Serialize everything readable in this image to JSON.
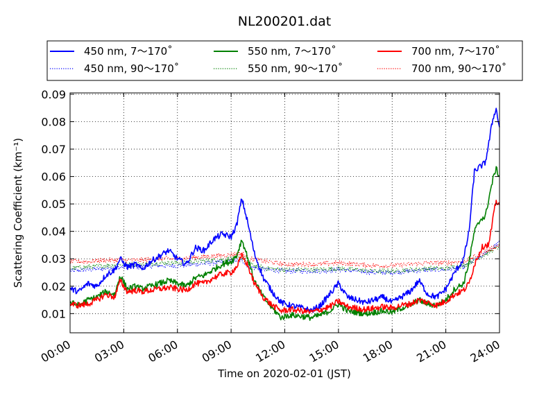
{
  "chart_data": {
    "type": "line",
    "title": "NL200201.dat",
    "xlabel": "Time on 2020-02-01 (JST)",
    "ylabel": "Scattering Coefficient (km⁻¹)",
    "xlim": [
      0,
      24
    ],
    "ylim": [
      0.003,
      0.0905
    ],
    "grid": true,
    "legend_position": "top",
    "x_ticks": [
      {
        "value": 0,
        "label": "00:00"
      },
      {
        "value": 3,
        "label": "03:00"
      },
      {
        "value": 6,
        "label": "06:00"
      },
      {
        "value": 9,
        "label": "09:00"
      },
      {
        "value": 12,
        "label": "12:00"
      },
      {
        "value": 15,
        "label": "15:00"
      },
      {
        "value": 18,
        "label": "18:00"
      },
      {
        "value": 21,
        "label": "21:00"
      },
      {
        "value": 24,
        "label": "24:00"
      }
    ],
    "y_ticks": [
      {
        "value": 0.01,
        "label": "0.01"
      },
      {
        "value": 0.02,
        "label": "0.02"
      },
      {
        "value": 0.03,
        "label": "0.03"
      },
      {
        "value": 0.04,
        "label": "0.04"
      },
      {
        "value": 0.05,
        "label": "0.05"
      },
      {
        "value": 0.06,
        "label": "0.06"
      },
      {
        "value": 0.07,
        "label": "0.07"
      },
      {
        "value": 0.08,
        "label": "0.08"
      },
      {
        "value": 0.09,
        "label": "0.09"
      }
    ],
    "series": [
      {
        "name": "450 nm, 7～170˚",
        "color": "#0000ff",
        "style": "solid",
        "x": [
          0,
          0.5,
          1,
          1.5,
          2,
          2.5,
          2.8,
          3.2,
          3.7,
          4,
          4.5,
          5,
          5.5,
          6,
          6.5,
          7,
          7.5,
          8,
          8.5,
          9,
          9.3,
          9.6,
          9.9,
          10.3,
          10.8,
          11.3,
          11.8,
          12.3,
          13,
          13.5,
          14,
          14.5,
          15,
          15.5,
          16,
          16.5,
          17,
          17.5,
          18,
          18.5,
          19,
          19.5,
          20,
          20.5,
          21,
          21.5,
          22,
          22.3,
          22.6,
          23,
          23.2,
          23.4,
          23.6,
          23.8,
          24
        ],
        "y": [
          0.019,
          0.018,
          0.021,
          0.02,
          0.024,
          0.026,
          0.03,
          0.027,
          0.028,
          0.026,
          0.029,
          0.031,
          0.033,
          0.03,
          0.028,
          0.034,
          0.033,
          0.037,
          0.039,
          0.038,
          0.042,
          0.052,
          0.044,
          0.032,
          0.023,
          0.018,
          0.014,
          0.013,
          0.012,
          0.011,
          0.013,
          0.017,
          0.021,
          0.016,
          0.015,
          0.014,
          0.015,
          0.016,
          0.014,
          0.016,
          0.018,
          0.022,
          0.017,
          0.016,
          0.019,
          0.025,
          0.03,
          0.04,
          0.062,
          0.064,
          0.065,
          0.072,
          0.08,
          0.085,
          0.078
        ]
      },
      {
        "name": "450 nm, 90～170˚",
        "color": "#0000ff",
        "style": "dotted",
        "x": [
          0,
          1,
          2,
          3,
          4,
          5,
          6,
          7,
          8,
          9,
          9.6,
          10,
          11,
          12,
          13,
          14,
          15,
          16,
          17,
          18,
          19,
          20,
          21,
          22,
          23,
          24
        ],
        "y": [
          0.0255,
          0.026,
          0.0265,
          0.027,
          0.027,
          0.0275,
          0.0275,
          0.028,
          0.0285,
          0.029,
          0.0295,
          0.027,
          0.026,
          0.0255,
          0.0255,
          0.0255,
          0.026,
          0.0255,
          0.025,
          0.025,
          0.0255,
          0.026,
          0.026,
          0.027,
          0.031,
          0.036
        ]
      },
      {
        "name": "550 nm, 7～170˚",
        "color": "#008000",
        "style": "solid",
        "x": [
          0,
          0.5,
          1,
          1.5,
          2,
          2.5,
          2.8,
          3.2,
          3.7,
          4,
          4.5,
          5,
          5.5,
          6,
          6.5,
          7,
          7.5,
          8,
          8.5,
          9,
          9.3,
          9.6,
          9.9,
          10.3,
          10.8,
          11.3,
          11.8,
          12.3,
          13,
          13.5,
          14,
          14.5,
          15,
          15.5,
          16,
          16.5,
          17,
          17.5,
          18,
          18.5,
          19,
          19.5,
          20,
          20.5,
          21,
          21.5,
          22,
          22.3,
          22.6,
          23,
          23.2,
          23.4,
          23.6,
          23.8,
          24
        ],
        "y": [
          0.014,
          0.013,
          0.015,
          0.016,
          0.018,
          0.017,
          0.024,
          0.019,
          0.02,
          0.019,
          0.02,
          0.021,
          0.022,
          0.021,
          0.02,
          0.023,
          0.024,
          0.026,
          0.028,
          0.029,
          0.031,
          0.037,
          0.031,
          0.022,
          0.016,
          0.012,
          0.0085,
          0.0095,
          0.009,
          0.0085,
          0.0095,
          0.011,
          0.0135,
          0.011,
          0.0105,
          0.01,
          0.0105,
          0.011,
          0.0105,
          0.012,
          0.013,
          0.015,
          0.0135,
          0.013,
          0.015,
          0.019,
          0.021,
          0.029,
          0.04,
          0.045,
          0.045,
          0.052,
          0.058,
          0.063,
          0.06
        ]
      },
      {
        "name": "550 nm, 90～170˚",
        "color": "#008000",
        "style": "dotted",
        "x": [
          0,
          1,
          2,
          3,
          4,
          5,
          6,
          7,
          8,
          9,
          9.6,
          10,
          11,
          12,
          13,
          14,
          15,
          16,
          17,
          18,
          19,
          20,
          21,
          22,
          23,
          24
        ],
        "y": [
          0.0265,
          0.027,
          0.0275,
          0.028,
          0.028,
          0.0285,
          0.0285,
          0.029,
          0.0295,
          0.03,
          0.0305,
          0.028,
          0.0265,
          0.026,
          0.026,
          0.026,
          0.0265,
          0.026,
          0.0255,
          0.0255,
          0.026,
          0.0265,
          0.0265,
          0.0275,
          0.031,
          0.0345
        ]
      },
      {
        "name": "700 nm, 7～170˚",
        "color": "#ff0000",
        "style": "solid",
        "x": [
          0,
          0.5,
          1,
          1.5,
          2,
          2.5,
          2.8,
          3.2,
          3.7,
          4,
          4.5,
          5,
          5.5,
          6,
          6.5,
          7,
          7.5,
          8,
          8.5,
          9,
          9.3,
          9.6,
          9.9,
          10.3,
          10.8,
          11.3,
          11.8,
          12.3,
          13,
          13.5,
          14,
          14.5,
          15,
          15.5,
          16,
          16.5,
          17,
          17.5,
          18,
          18.5,
          19,
          19.5,
          20,
          20.5,
          21,
          21.5,
          22,
          22.3,
          22.6,
          23,
          23.2,
          23.4,
          23.6,
          23.8,
          24
        ],
        "y": [
          0.0135,
          0.013,
          0.0135,
          0.015,
          0.017,
          0.016,
          0.022,
          0.018,
          0.0185,
          0.018,
          0.0185,
          0.019,
          0.0195,
          0.019,
          0.0185,
          0.021,
          0.021,
          0.023,
          0.0245,
          0.025,
          0.027,
          0.031,
          0.028,
          0.021,
          0.016,
          0.013,
          0.011,
          0.0115,
          0.011,
          0.0105,
          0.0115,
          0.0125,
          0.0145,
          0.0125,
          0.012,
          0.0115,
          0.012,
          0.0125,
          0.012,
          0.013,
          0.0135,
          0.015,
          0.014,
          0.013,
          0.0145,
          0.017,
          0.0185,
          0.021,
          0.028,
          0.034,
          0.035,
          0.035,
          0.043,
          0.051,
          0.05
        ]
      },
      {
        "name": "700 nm, 90～170˚",
        "color": "#ff0000",
        "style": "dotted",
        "x": [
          0,
          1,
          2,
          3,
          4,
          5,
          6,
          7,
          8,
          9,
          9.6,
          10,
          11,
          12,
          13,
          14,
          15,
          16,
          17,
          18,
          19,
          20,
          21,
          22,
          23,
          24
        ],
        "y": [
          0.029,
          0.029,
          0.0295,
          0.0295,
          0.0295,
          0.03,
          0.03,
          0.0305,
          0.031,
          0.0315,
          0.032,
          0.03,
          0.029,
          0.028,
          0.028,
          0.028,
          0.0285,
          0.028,
          0.0275,
          0.0275,
          0.028,
          0.0285,
          0.0285,
          0.029,
          0.032,
          0.035
        ]
      }
    ]
  }
}
